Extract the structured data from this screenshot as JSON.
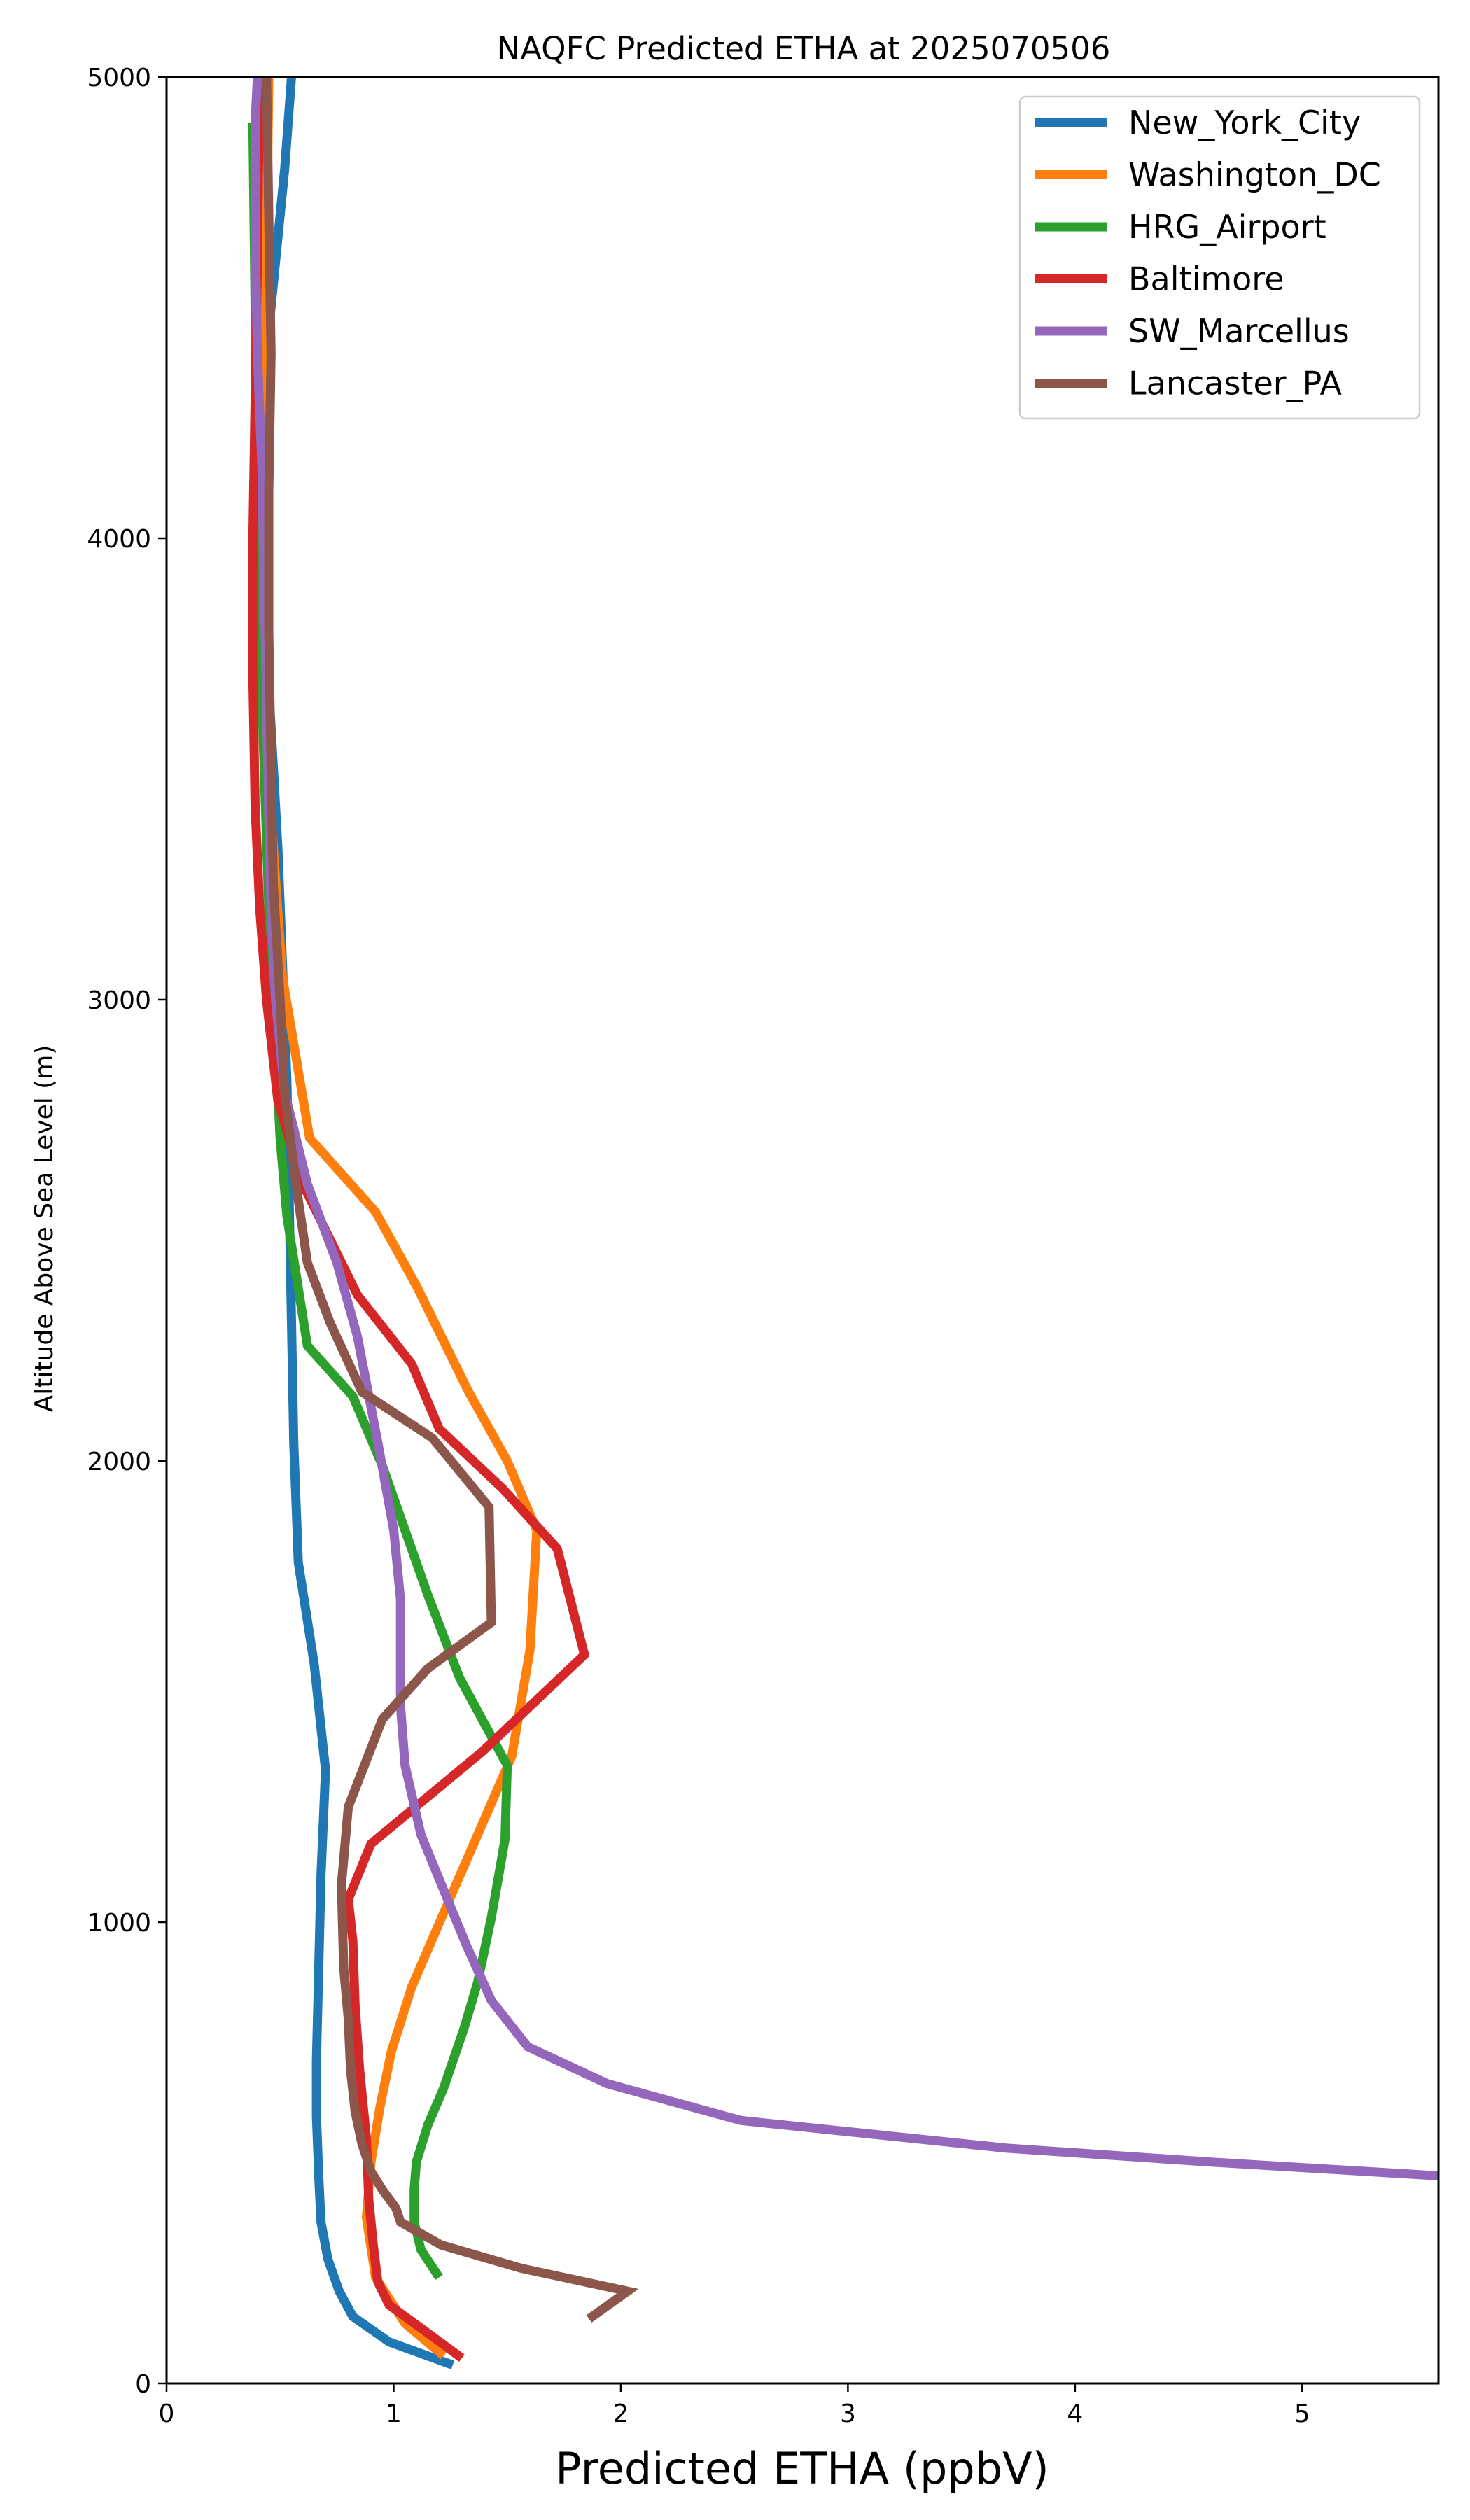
{
  "chart_data": {
    "type": "line",
    "title": "NAQFC Predicted ETHA at 2025070506",
    "xlabel": "Predicted ETHA (ppbV)",
    "ylabel": "Altitude Above Sea Level (m)",
    "xlim": [
      0,
      5.6
    ],
    "ylim": [
      0,
      5000
    ],
    "xticks": [
      "0",
      "1",
      "2",
      "3",
      "4",
      "5"
    ],
    "yticks": [
      "0",
      "1000",
      "2000",
      "3000",
      "4000",
      "5000"
    ],
    "legend_position": "top-right",
    "grid": false,
    "series": [
      {
        "name": "New_York_City",
        "color": "#1f77b4",
        "points": [
          [
            1.26,
            40
          ],
          [
            0.98,
            90
          ],
          [
            0.82,
            145
          ],
          [
            0.76,
            200
          ],
          [
            0.71,
            270
          ],
          [
            0.68,
            350
          ],
          [
            0.67,
            450
          ],
          [
            0.66,
            580
          ],
          [
            0.66,
            700
          ],
          [
            0.67,
            900
          ],
          [
            0.68,
            1100
          ],
          [
            0.7,
            1330
          ],
          [
            0.65,
            1560
          ],
          [
            0.58,
            1780
          ],
          [
            0.56,
            2040
          ],
          [
            0.55,
            2300
          ],
          [
            0.54,
            2560
          ],
          [
            0.53,
            2820
          ],
          [
            0.51,
            3080
          ],
          [
            0.49,
            3330
          ],
          [
            0.46,
            3590
          ],
          [
            0.43,
            3850
          ],
          [
            0.42,
            4100
          ],
          [
            0.43,
            4350
          ],
          [
            0.48,
            4600
          ],
          [
            0.52,
            4800
          ],
          [
            0.55,
            5000
          ]
        ]
      },
      {
        "name": "Washington_DC",
        "color": "#ff7f0e",
        "points": [
          [
            1.22,
            60
          ],
          [
            1.05,
            130
          ],
          [
            0.92,
            230
          ],
          [
            0.88,
            360
          ],
          [
            0.9,
            480
          ],
          [
            0.94,
            600
          ],
          [
            0.99,
            720
          ],
          [
            1.08,
            860
          ],
          [
            1.22,
            1020
          ],
          [
            1.37,
            1190
          ],
          [
            1.52,
            1360
          ],
          [
            1.6,
            1590
          ],
          [
            1.63,
            1850
          ],
          [
            1.5,
            2000
          ],
          [
            1.33,
            2150
          ],
          [
            1.1,
            2380
          ],
          [
            0.92,
            2540
          ],
          [
            0.63,
            2700
          ],
          [
            0.51,
            3050
          ],
          [
            0.46,
            3400
          ],
          [
            0.42,
            3800
          ],
          [
            0.42,
            4200
          ],
          [
            0.44,
            4600
          ],
          [
            0.45,
            5000
          ]
        ]
      },
      {
        "name": "HRG_Airport",
        "color": "#2ca02c",
        "points": [
          [
            1.2,
            230
          ],
          [
            1.12,
            290
          ],
          [
            1.09,
            350
          ],
          [
            1.09,
            420
          ],
          [
            1.1,
            480
          ],
          [
            1.15,
            560
          ],
          [
            1.22,
            640
          ],
          [
            1.31,
            770
          ],
          [
            1.37,
            870
          ],
          [
            1.43,
            1010
          ],
          [
            1.49,
            1180
          ],
          [
            1.5,
            1340
          ],
          [
            1.4,
            1430
          ],
          [
            1.29,
            1530
          ],
          [
            1.15,
            1710
          ],
          [
            0.95,
            1990
          ],
          [
            0.82,
            2140
          ],
          [
            0.62,
            2250
          ],
          [
            0.53,
            2530
          ],
          [
            0.5,
            2700
          ],
          [
            0.48,
            2900
          ],
          [
            0.45,
            3200
          ],
          [
            0.43,
            3500
          ],
          [
            0.41,
            3800
          ],
          [
            0.39,
            4100
          ],
          [
            0.39,
            4500
          ],
          [
            0.38,
            4900
          ]
        ]
      },
      {
        "name": "Baltimore",
        "color": "#d62728",
        "points": [
          [
            1.3,
            55
          ],
          [
            1.12,
            120
          ],
          [
            0.98,
            170
          ],
          [
            0.93,
            220
          ],
          [
            0.91,
            300
          ],
          [
            0.89,
            400
          ],
          [
            0.88,
            530
          ],
          [
            0.85,
            680
          ],
          [
            0.83,
            820
          ],
          [
            0.82,
            960
          ],
          [
            0.8,
            1050
          ],
          [
            0.9,
            1170
          ],
          [
            1.39,
            1370
          ],
          [
            1.84,
            1580
          ],
          [
            1.72,
            1810
          ],
          [
            1.48,
            1940
          ],
          [
            1.2,
            2070
          ],
          [
            1.08,
            2210
          ],
          [
            0.84,
            2360
          ],
          [
            0.73,
            2470
          ],
          [
            0.6,
            2600
          ],
          [
            0.49,
            2780
          ],
          [
            0.44,
            3000
          ],
          [
            0.41,
            3200
          ],
          [
            0.39,
            3420
          ],
          [
            0.38,
            3700
          ],
          [
            0.38,
            4000
          ],
          [
            0.39,
            4300
          ],
          [
            0.4,
            4600
          ],
          [
            0.41,
            5000
          ]
        ]
      },
      {
        "name": "SW_Marcellus",
        "color": "#9467bd",
        "points": [
          [
            5.6,
            450
          ],
          [
            4.6,
            480
          ],
          [
            3.7,
            510
          ],
          [
            2.53,
            570
          ],
          [
            1.94,
            650
          ],
          [
            1.59,
            730
          ],
          [
            1.43,
            830
          ],
          [
            1.32,
            950
          ],
          [
            1.22,
            1070
          ],
          [
            1.12,
            1190
          ],
          [
            1.05,
            1340
          ],
          [
            1.03,
            1470
          ],
          [
            1.03,
            1700
          ],
          [
            1.0,
            1850
          ],
          [
            0.93,
            2040
          ],
          [
            0.84,
            2270
          ],
          [
            0.75,
            2430
          ],
          [
            0.62,
            2600
          ],
          [
            0.52,
            2800
          ],
          [
            0.48,
            3000
          ],
          [
            0.46,
            3200
          ],
          [
            0.45,
            3400
          ],
          [
            0.44,
            3650
          ],
          [
            0.43,
            3900
          ],
          [
            0.42,
            4150
          ],
          [
            0.4,
            4400
          ],
          [
            0.39,
            4650
          ],
          [
            0.39,
            4900
          ],
          [
            0.4,
            5000
          ]
        ]
      },
      {
        "name": "Lancaster_PA",
        "color": "#8c564b",
        "points": [
          [
            1.86,
            140
          ],
          [
            2.03,
            200
          ],
          [
            1.56,
            250
          ],
          [
            1.21,
            300
          ],
          [
            1.03,
            350
          ],
          [
            1.01,
            380
          ],
          [
            0.95,
            420
          ],
          [
            0.9,
            460
          ],
          [
            0.86,
            520
          ],
          [
            0.83,
            590
          ],
          [
            0.81,
            680
          ],
          [
            0.8,
            790
          ],
          [
            0.78,
            900
          ],
          [
            0.77,
            1080
          ],
          [
            0.8,
            1250
          ],
          [
            0.95,
            1440
          ],
          [
            1.15,
            1550
          ],
          [
            1.43,
            1650
          ],
          [
            1.42,
            1900
          ],
          [
            1.17,
            2050
          ],
          [
            0.86,
            2150
          ],
          [
            0.72,
            2300
          ],
          [
            0.62,
            2430
          ],
          [
            0.57,
            2600
          ],
          [
            0.52,
            2800
          ],
          [
            0.5,
            3000
          ],
          [
            0.47,
            3250
          ],
          [
            0.46,
            3500
          ],
          [
            0.45,
            3800
          ],
          [
            0.45,
            4100
          ],
          [
            0.46,
            4400
          ],
          [
            0.45,
            4700
          ],
          [
            0.44,
            5000
          ]
        ]
      }
    ]
  }
}
